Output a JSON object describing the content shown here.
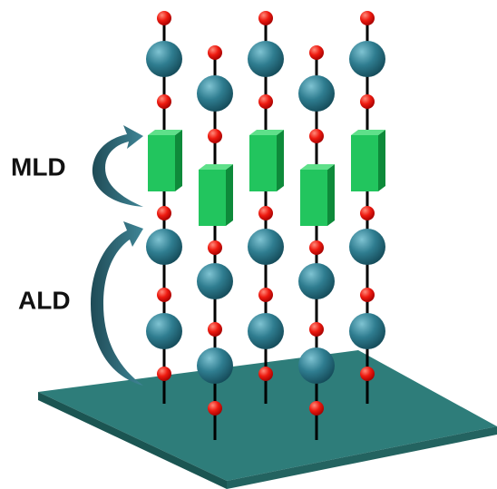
{
  "labels": {
    "mld": "MLD",
    "ald": "ALD"
  }
}
